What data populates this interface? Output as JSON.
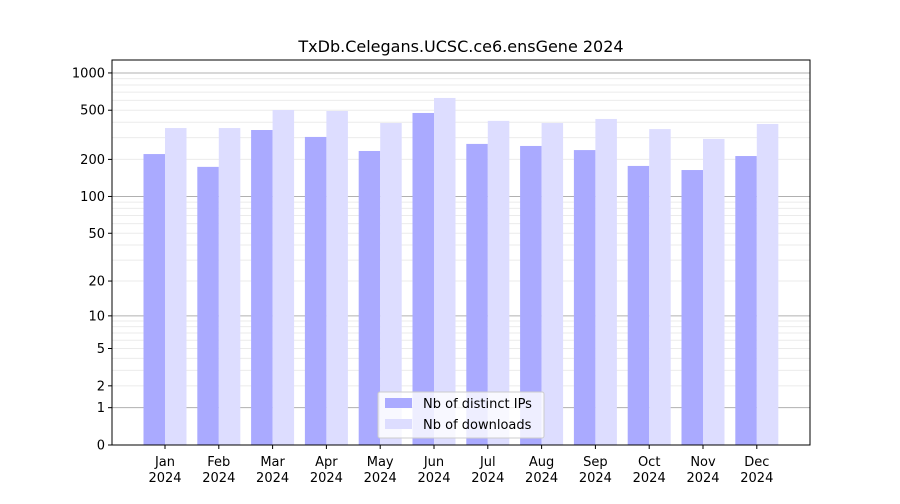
{
  "chart_data": {
    "type": "bar",
    "title": "TxDb.Celegans.UCSC.ce6.ensGene 2024",
    "xlabel": "",
    "ylabel": "",
    "yscale": "log(1+x)",
    "ylim": [
      0,
      1200
    ],
    "yticks": [
      0,
      1,
      2,
      5,
      10,
      20,
      50,
      100,
      200,
      500,
      1000
    ],
    "grid": true,
    "legend_position": "bottom-center",
    "categories": [
      "Jan\n2024",
      "Feb\n2024",
      "Mar\n2024",
      "Apr\n2024",
      "May\n2024",
      "Jun\n2024",
      "Jul\n2024",
      "Aug\n2024",
      "Sep\n2024",
      "Oct\n2024",
      "Nov\n2024",
      "Dec\n2024"
    ],
    "series": [
      {
        "name": "Nb of distinct IPs",
        "color": "#aaaaff",
        "values": [
          221,
          174,
          346,
          304,
          234,
          475,
          267,
          257,
          238,
          177,
          164,
          213
        ]
      },
      {
        "name": "Nb of downloads",
        "color": "#ddddff",
        "values": [
          359,
          359,
          502,
          493,
          394,
          628,
          410,
          394,
          425,
          352,
          293,
          387
        ]
      }
    ]
  }
}
